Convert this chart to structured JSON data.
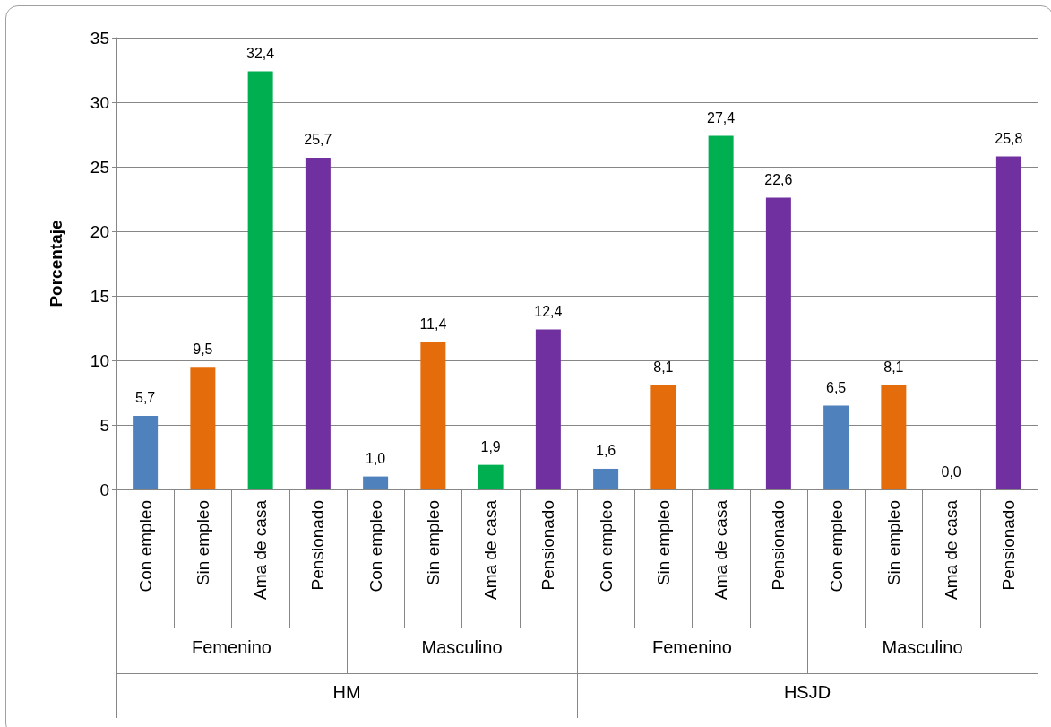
{
  "chart_data": {
    "type": "bar",
    "ylabel": "Porcentaje",
    "categories": [
      "Con empleo",
      "Sin empleo",
      "Ama de casa",
      "Pensionado",
      "Con empleo",
      "Sin empleo",
      "Ama de casa",
      "Pensionado",
      "Con empleo",
      "Sin empleo",
      "Ama de casa",
      "Pensionado",
      "Con empleo",
      "Sin empleo",
      "Ama de casa",
      "Pensionado"
    ],
    "values": [
      5.7,
      9.5,
      32.4,
      25.7,
      1.0,
      11.4,
      1.9,
      12.4,
      1.6,
      8.1,
      27.4,
      22.6,
      6.5,
      8.1,
      0.0,
      25.8
    ],
    "value_labels": [
      "5,7",
      "9,5",
      "32,4",
      "25,7",
      "1,0",
      "11,4",
      "1,9",
      "12,4",
      "1,6",
      "8,1",
      "27,4",
      "22,6",
      "6,5",
      "8,1",
      "0,0",
      "25,8"
    ],
    "colors": [
      "#4f81bd",
      "#e46c0a",
      "#00b050",
      "#7030a0",
      "#4f81bd",
      "#e46c0a",
      "#00b050",
      "#7030a0",
      "#4f81bd",
      "#e46c0a",
      "#00b050",
      "#7030a0",
      "#4f81bd",
      "#e46c0a",
      "#00b050",
      "#7030a0"
    ],
    "ylim": [
      0,
      35
    ],
    "yticks": [
      0,
      5,
      10,
      15,
      20,
      25,
      30,
      35
    ],
    "grid": "y",
    "annotations": [
      "Femenino",
      "Masculino",
      "Femenino",
      "Masculino",
      "HM",
      "HSJD"
    ]
  }
}
